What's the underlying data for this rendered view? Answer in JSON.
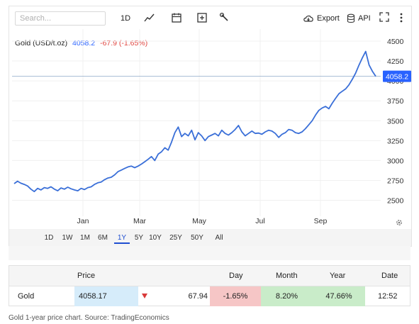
{
  "toolbar": {
    "search_placeholder": "Search...",
    "interval_label": "1D",
    "export_label": "Export",
    "api_label": "API"
  },
  "legend": {
    "symbol": "Gold (USD/t.oz)",
    "last_value": "4058.2",
    "change": "-67.9 (-1.65%)",
    "value_color": "#2962ff",
    "change_color": "#e0453f"
  },
  "price_badge": "4058.2",
  "ranges": [
    "1D",
    "1W",
    "1M",
    "6M",
    "1Y",
    "5Y",
    "10Y",
    "25Y",
    "50Y",
    "All"
  ],
  "active_range": "1Y",
  "chart_data": {
    "type": "line",
    "title": "",
    "xlabel": "",
    "ylabel": "",
    "x_tick_labels": [
      "Jan",
      "Mar",
      "May",
      "Jul",
      "Sep"
    ],
    "y_ticks": [
      2500,
      2750,
      3000,
      3250,
      3500,
      3750,
      4000,
      4250,
      4500
    ],
    "ylim": [
      2300,
      4580
    ],
    "current_price_line": 4058.2,
    "grid": true,
    "line_color": "#3a6fd8",
    "series": [
      {
        "name": "Gold",
        "values": [
          2710,
          2740,
          2715,
          2700,
          2680,
          2640,
          2610,
          2650,
          2630,
          2660,
          2650,
          2670,
          2640,
          2620,
          2655,
          2640,
          2665,
          2645,
          2630,
          2620,
          2650,
          2635,
          2660,
          2670,
          2700,
          2720,
          2730,
          2760,
          2780,
          2790,
          2820,
          2860,
          2880,
          2900,
          2920,
          2930,
          2910,
          2930,
          2955,
          2985,
          3015,
          3050,
          3000,
          3080,
          3110,
          3160,
          3130,
          3230,
          3350,
          3420,
          3300,
          3340,
          3310,
          3380,
          3260,
          3350,
          3310,
          3250,
          3300,
          3320,
          3340,
          3310,
          3380,
          3340,
          3320,
          3350,
          3390,
          3440,
          3360,
          3310,
          3340,
          3370,
          3340,
          3345,
          3330,
          3360,
          3380,
          3370,
          3340,
          3290,
          3330,
          3350,
          3390,
          3380,
          3350,
          3340,
          3360,
          3400,
          3450,
          3500,
          3570,
          3630,
          3660,
          3680,
          3650,
          3720,
          3780,
          3840,
          3870,
          3900,
          3950,
          4020,
          4100,
          4200,
          4290,
          4370,
          4200,
          4120,
          4058
        ]
      }
    ]
  },
  "quote_table": {
    "headers": [
      "Price",
      "Day",
      "Month",
      "Year",
      "Date"
    ],
    "row": {
      "name": "Gold",
      "price": "4058.17",
      "change": "67.94",
      "day": "-1.65%",
      "month": "8.20%",
      "year": "47.66%",
      "date": "12:52"
    },
    "colors": {
      "price_bg": "#d6ecfa",
      "down_bg": "#f6c6c6",
      "up_bg": "#c9ecc9",
      "down_arrow": "#d93a3a"
    }
  },
  "caption": "Gold 1-year price chart. Source: TradingEconomics"
}
